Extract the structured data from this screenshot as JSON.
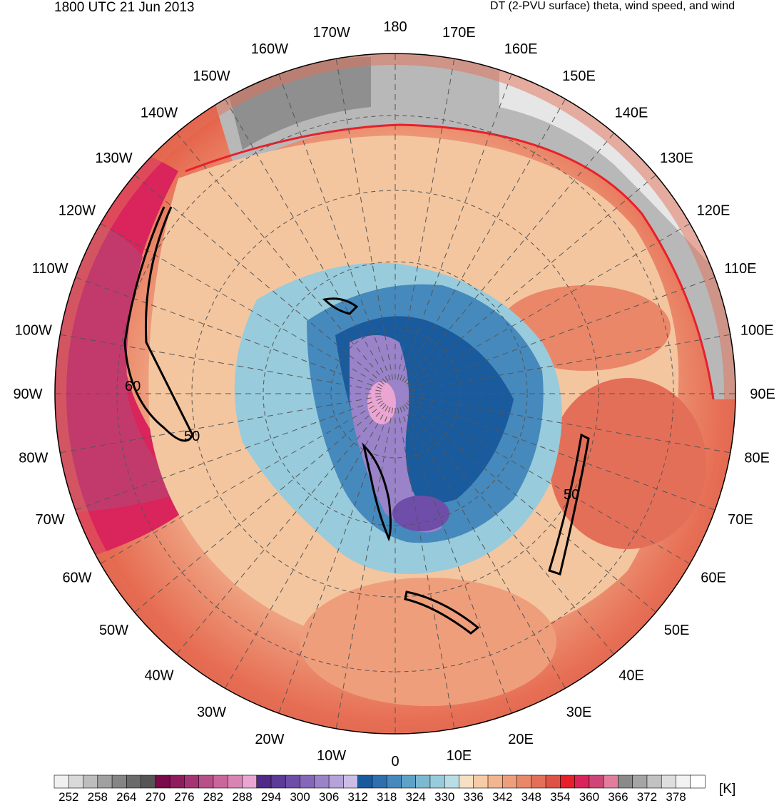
{
  "header": {
    "valid_time": "1800 UTC 21 Jun 2013",
    "product": "DT (2-PVU surface) theta, wind speed, and wind"
  },
  "map": {
    "projection": "north polar stereographic",
    "longitude_labels": [
      {
        "text": "0",
        "lon": 0
      },
      {
        "text": "10E",
        "lon": 10
      },
      {
        "text": "20E",
        "lon": 20
      },
      {
        "text": "30E",
        "lon": 30
      },
      {
        "text": "40E",
        "lon": 40
      },
      {
        "text": "50E",
        "lon": 50
      },
      {
        "text": "60E",
        "lon": 60
      },
      {
        "text": "70E",
        "lon": 70
      },
      {
        "text": "80E",
        "lon": 80
      },
      {
        "text": "90E",
        "lon": 90
      },
      {
        "text": "100E",
        "lon": 100
      },
      {
        "text": "110E",
        "lon": 110
      },
      {
        "text": "120E",
        "lon": 120
      },
      {
        "text": "130E",
        "lon": 130
      },
      {
        "text": "140E",
        "lon": 140
      },
      {
        "text": "150E",
        "lon": 150
      },
      {
        "text": "160E",
        "lon": 160
      },
      {
        "text": "170E",
        "lon": 170
      },
      {
        "text": "180",
        "lon": 180
      },
      {
        "text": "170W",
        "lon": -170
      },
      {
        "text": "160W",
        "lon": -160
      },
      {
        "text": "150W",
        "lon": -150
      },
      {
        "text": "140W",
        "lon": -140
      },
      {
        "text": "130W",
        "lon": -130
      },
      {
        "text": "120W",
        "lon": -120
      },
      {
        "text": "110W",
        "lon": -110
      },
      {
        "text": "100W",
        "lon": -100
      },
      {
        "text": "90W",
        "lon": -90
      },
      {
        "text": "80W",
        "lon": -80
      },
      {
        "text": "70W",
        "lon": -70
      },
      {
        "text": "60W",
        "lon": -60
      },
      {
        "text": "50W",
        "lon": -50
      },
      {
        "text": "40W",
        "lon": -40
      },
      {
        "text": "30W",
        "lon": -30
      },
      {
        "text": "20W",
        "lon": -20
      },
      {
        "text": "10W",
        "lon": -10
      }
    ],
    "wind_speed_contour_labels": [
      "60",
      "50",
      "50"
    ]
  },
  "colorbar": {
    "units": "[K]",
    "labels": [
      "252",
      "258",
      "264",
      "270",
      "276",
      "282",
      "288",
      "294",
      "300",
      "306",
      "312",
      "318",
      "324",
      "330",
      "336",
      "342",
      "348",
      "354",
      "360",
      "366",
      "372",
      "378"
    ],
    "colors": [
      "#f0f0f0",
      "#d9d9d9",
      "#bdbdbd",
      "#a0a0a0",
      "#858585",
      "#6b6b6b",
      "#555555",
      "#7a0a4a",
      "#8f1c5e",
      "#a63474",
      "#b84f88",
      "#c9679b",
      "#d984b3",
      "#eaa5d3",
      "#4f2a86",
      "#5c3a98",
      "#6e4ea8",
      "#8467b9",
      "#9a83c9",
      "#b4a2d9",
      "#cbbde6",
      "#1a5b9e",
      "#2e6fb0",
      "#4689bd",
      "#5fa2c8",
      "#7bb9d1",
      "#98cbdb",
      "#b8dde5",
      "#f7dfc2",
      "#f6cba7",
      "#f3b590",
      "#ef9e7b",
      "#ea8769",
      "#e46f58",
      "#dd5347",
      "#e8202a",
      "#d9245c",
      "#cf4577",
      "#e27e9c",
      "#8a8a8a",
      "#a5a5a5",
      "#c2c2c2",
      "#dedede",
      "#f2f2f2",
      "#ffffff"
    ]
  }
}
